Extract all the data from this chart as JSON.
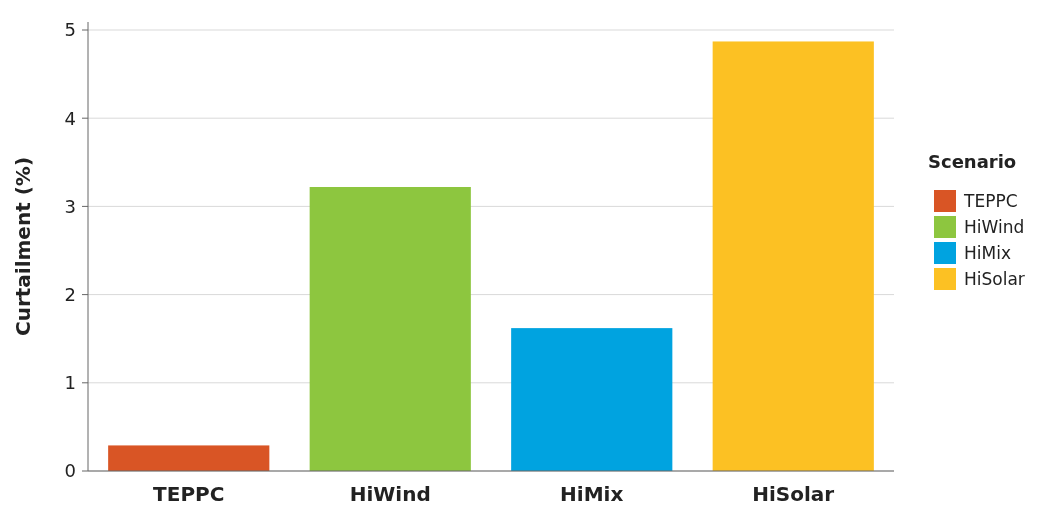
{
  "chart_data": {
    "type": "bar",
    "ylabel": "Curtailment (%)",
    "legend_title": "Scenario",
    "categories": [
      "TEPPC",
      "HiWind",
      "HiMix",
      "HiSolar"
    ],
    "series": [
      {
        "name": "TEPPC",
        "color": "#d95525",
        "values": [
          0.29,
          null,
          null,
          null
        ]
      },
      {
        "name": "HiWind",
        "color": "#8dc63f",
        "values": [
          null,
          3.22,
          null,
          null
        ]
      },
      {
        "name": "HiMix",
        "color": "#00a3e0",
        "values": [
          null,
          null,
          1.62,
          null
        ]
      },
      {
        "name": "HiSolar",
        "color": "#fcc123",
        "values": [
          null,
          null,
          null,
          4.87
        ]
      }
    ],
    "ylim": [
      0,
      5
    ],
    "yticks": [
      0,
      1,
      2,
      3,
      4,
      5
    ],
    "grid": "y",
    "legend": "right"
  }
}
